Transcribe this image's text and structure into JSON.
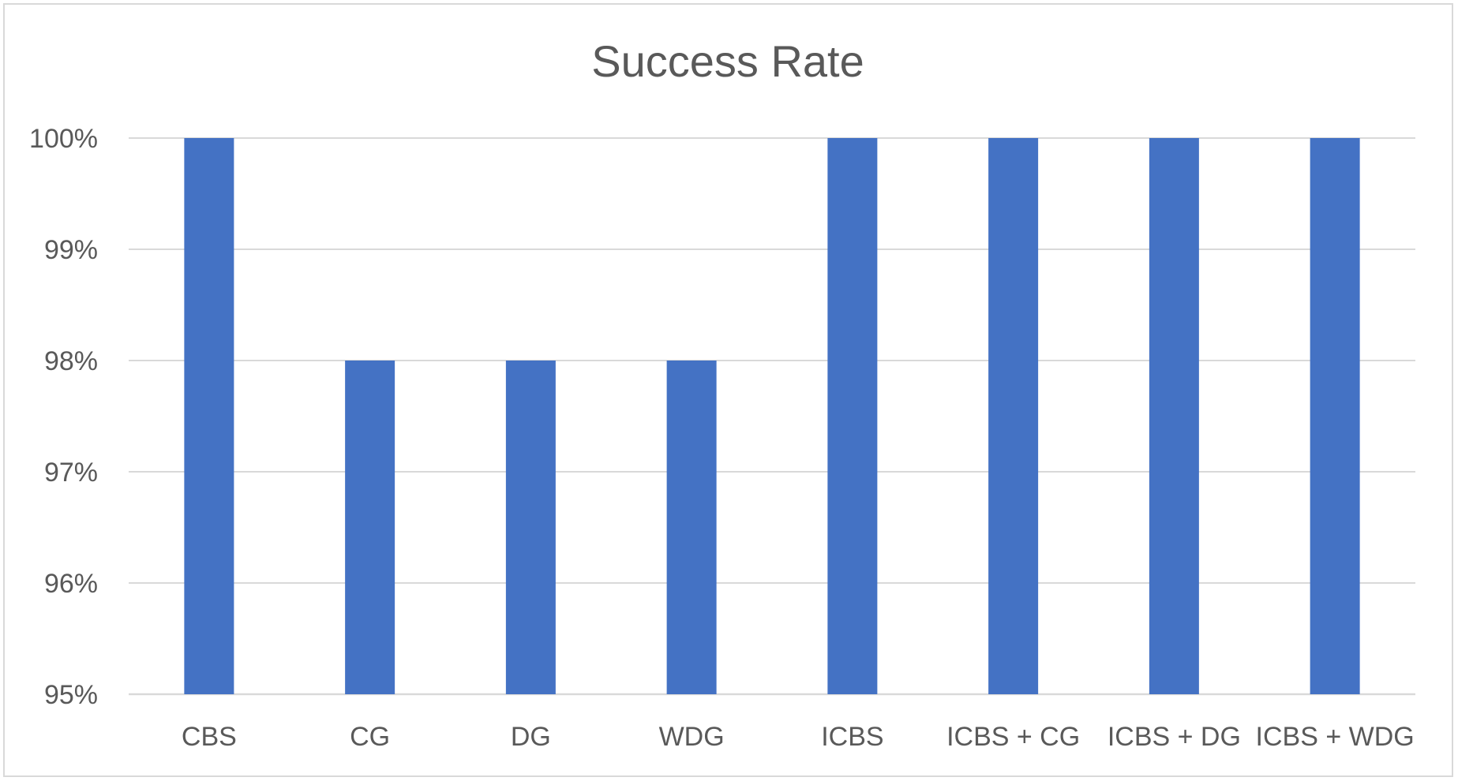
{
  "chart_data": {
    "type": "bar",
    "title": "Success Rate",
    "categories": [
      "CBS",
      "CG",
      "DG",
      "WDG",
      "ICBS",
      "ICBS + CG",
      "ICBS + DG",
      "ICBS + WDG"
    ],
    "values": [
      1.0,
      0.98,
      0.98,
      0.98,
      1.0,
      1.0,
      1.0,
      1.0
    ],
    "y_ticks": [
      "95%",
      "96%",
      "97%",
      "98%",
      "99%",
      "100%"
    ],
    "ylim": [
      0.95,
      1.0
    ],
    "xlabel": "",
    "ylabel": "",
    "grid": true,
    "legend": "none",
    "bar_color": "#4472C4"
  }
}
